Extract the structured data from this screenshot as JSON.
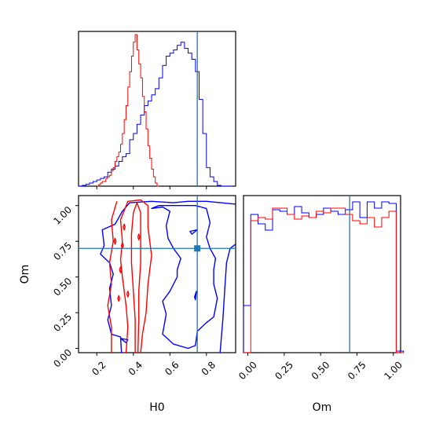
{
  "chart_data": {
    "type": "corner",
    "parameters": [
      "H0",
      "Om"
    ],
    "truth": {
      "H0": 0.75,
      "Om": 0.7
    },
    "colors": {
      "series_a": "#0000ff",
      "series_b": "#ff0000",
      "truth": "#1f77b4",
      "frame": "#000000"
    },
    "grid": false,
    "legend": "none",
    "panels": [
      {
        "id": "H0_hist",
        "type": "step_histogram",
        "xlim": [
          0.1,
          0.96
        ],
        "ylim": [
          0,
          1.0
        ],
        "show_ticks_labels": false,
        "series": [
          {
            "color": "#0000ff",
            "bin_width": 0.02,
            "bins_start": 0.1,
            "values": [
              0.0,
              0.005,
              0.012,
              0.02,
              0.03,
              0.04,
              0.05,
              0.06,
              0.09,
              0.11,
              0.13,
              0.16,
              0.19,
              0.21,
              0.3,
              0.34,
              0.4,
              0.46,
              0.52,
              0.55,
              0.59,
              0.63,
              0.7,
              0.78,
              0.84,
              0.86,
              0.88,
              0.91,
              0.93,
              0.89,
              0.86,
              0.82,
              0.74,
              0.56,
              0.34,
              0.12,
              0.06,
              0.03,
              0.005,
              0.0,
              0.0,
              0.0
            ]
          },
          {
            "color": "#ff0000",
            "bin_width": 0.01,
            "bins_start": 0.2,
            "values": [
              0.0,
              0.01,
              0.02,
              0.03,
              0.03,
              0.05,
              0.06,
              0.07,
              0.1,
              0.12,
              0.16,
              0.19,
              0.22,
              0.27,
              0.34,
              0.43,
              0.52,
              0.64,
              0.74,
              0.84,
              0.93,
              0.98,
              0.88,
              0.79,
              0.7,
              0.58,
              0.48,
              0.37,
              0.26,
              0.18,
              0.11,
              0.06,
              0.02,
              0.0
            ]
          }
        ]
      },
      {
        "id": "H0_Om_contour",
        "type": "contour",
        "xlim": [
          0.1,
          0.96
        ],
        "ylim": [
          -0.03,
          1.07
        ],
        "xticks": [
          "0.2",
          "0.4",
          "0.6",
          "0.8"
        ],
        "yticks": [
          "0.00",
          "0.25",
          "0.50",
          "0.75",
          "1.00"
        ],
        "xlabel": "H0",
        "ylabel": "Om",
        "truth_marker": [
          0.75,
          0.7
        ]
      },
      {
        "id": "Om_hist",
        "type": "step_histogram",
        "xlim": [
          -0.03,
          1.05
        ],
        "ylim": [
          0,
          1.0
        ],
        "xticks": [
          "0.00",
          "0.25",
          "0.50",
          "0.75",
          "1.00"
        ],
        "xlabel": "Om",
        "series": [
          {
            "color": "#0000ff",
            "bins_start": -0.03,
            "bin_width": 0.05,
            "values": [
              0.3,
              0.88,
              0.82,
              0.78,
              0.91,
              0.9,
              0.88,
              0.93,
              0.89,
              0.86,
              0.88,
              0.92,
              0.9,
              0.88,
              0.91,
              0.96,
              0.86,
              0.96,
              0.92,
              0.96,
              0.95,
              0.01
            ]
          },
          {
            "color": "#ff0000",
            "bins_start": -0.03,
            "bin_width": 0.05,
            "values": [
              0.0,
              0.84,
              0.86,
              0.85,
              0.92,
              0.92,
              0.88,
              0.85,
              0.87,
              0.86,
              0.9,
              0.89,
              0.92,
              0.92,
              0.88,
              0.84,
              0.82,
              0.86,
              0.8,
              0.86,
              0.9,
              0.0
            ]
          }
        ]
      }
    ]
  }
}
